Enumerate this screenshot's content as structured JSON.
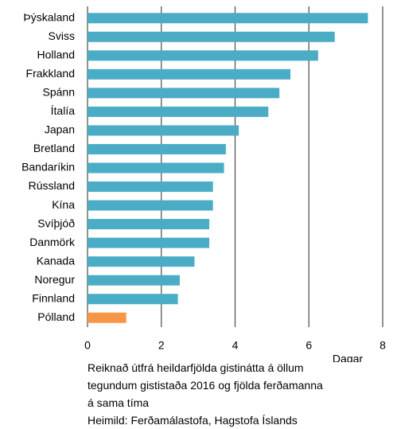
{
  "chart_data": {
    "type": "barh",
    "categories": [
      "Þýskaland",
      "Sviss",
      "Holland",
      "Frakkland",
      "Spánn",
      "Ítalía",
      "Japan",
      "Bretland",
      "Bandaríkin",
      "Rússland",
      "Kína",
      "Svíþjóð",
      "Danmörk",
      "Kanada",
      "Noregur",
      "Finnland",
      "Pólland"
    ],
    "values": [
      7.6,
      6.7,
      6.25,
      5.5,
      5.2,
      4.9,
      4.1,
      3.75,
      3.7,
      3.4,
      3.4,
      3.3,
      3.3,
      2.9,
      2.5,
      2.45,
      1.05
    ],
    "colors": [
      "#4bacc6",
      "#4bacc6",
      "#4bacc6",
      "#4bacc6",
      "#4bacc6",
      "#4bacc6",
      "#4bacc6",
      "#4bacc6",
      "#4bacc6",
      "#4bacc6",
      "#4bacc6",
      "#4bacc6",
      "#4bacc6",
      "#4bacc6",
      "#4bacc6",
      "#4bacc6",
      "#f79646"
    ],
    "xlim": [
      0,
      8
    ],
    "xticks": [
      0,
      2,
      4,
      6,
      8
    ],
    "grid": true,
    "x_label": "Dagar",
    "note": "Reiknað útfrá heildarfjölda gistinátta á öllum tegundum gististaða 2016 og fjölda ferðamanna á sama tíma",
    "source": "Heimild: Ferðamálastofa, Hagstofa Íslands"
  }
}
